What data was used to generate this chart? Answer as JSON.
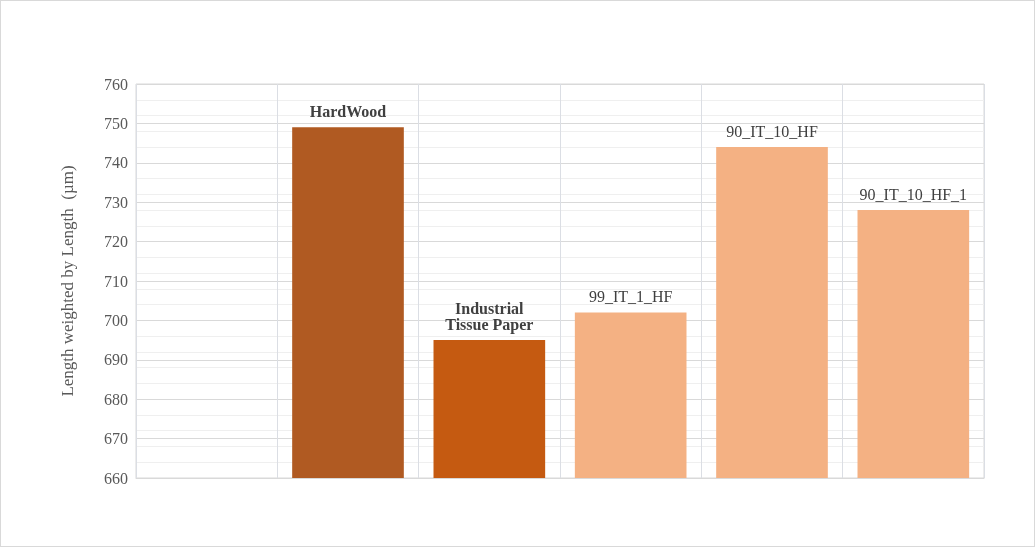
{
  "chart_data": {
    "type": "bar",
    "ylabel": "Length weighted by Length  (µm)",
    "categories": [
      null,
      "HardWood",
      "Industrial\nTissue Paper",
      "99_IT_1_HF",
      "90_IT_10_HF",
      "90_IT_10_HF_1"
    ],
    "values": [
      null,
      749,
      695,
      702,
      744,
      728
    ],
    "colors": [
      "#f4b183",
      "#b05a22",
      "#c55a11",
      "#f4b183",
      "#f4b183",
      "#f4b183"
    ],
    "ylim": [
      660,
      760
    ],
    "yticks": [
      660,
      670,
      680,
      690,
      700,
      710,
      720,
      730,
      740,
      750,
      760
    ],
    "grid": true,
    "tick_labels": "y"
  }
}
